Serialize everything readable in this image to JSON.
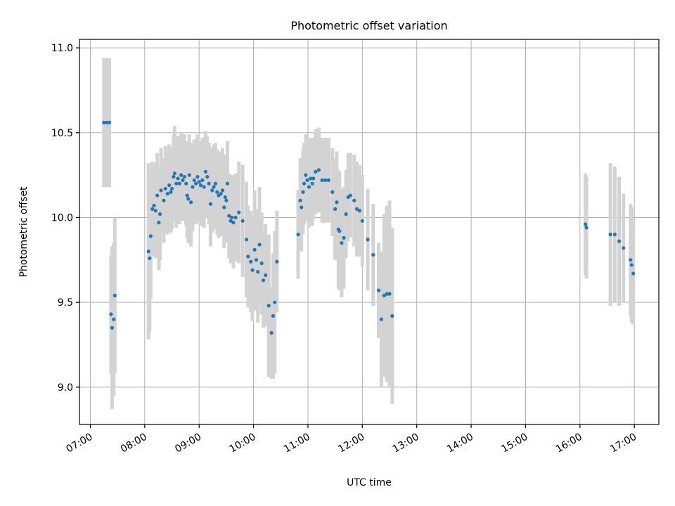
{
  "chart_data": {
    "type": "scatter",
    "title": "Photometric offset variation",
    "xlabel": "UTC time",
    "ylabel": "Photometric offset",
    "x_unit": "hours (UTC)",
    "xlim": [
      6.8,
      17.45
    ],
    "ylim": [
      8.78,
      11.05
    ],
    "grid": true,
    "colors": {
      "point": "#1f77b4",
      "errorbar": "#d3d3d3",
      "grid": "#b0b0b0"
    },
    "x_ticks": [
      {
        "value": 7,
        "label": "07:00"
      },
      {
        "value": 8,
        "label": "08:00"
      },
      {
        "value": 9,
        "label": "09:00"
      },
      {
        "value": 10,
        "label": "10:00"
      },
      {
        "value": 11,
        "label": "11:00"
      },
      {
        "value": 12,
        "label": "12:00"
      },
      {
        "value": 13,
        "label": "13:00"
      },
      {
        "value": 14,
        "label": "14:00"
      },
      {
        "value": 15,
        "label": "15:00"
      },
      {
        "value": 16,
        "label": "16:00"
      },
      {
        "value": 17,
        "label": "17:00"
      }
    ],
    "y_ticks": [
      {
        "value": 9.0,
        "label": "9.0"
      },
      {
        "value": 9.5,
        "label": "9.5"
      },
      {
        "value": 10.0,
        "label": "10.0"
      },
      {
        "value": 10.5,
        "label": "10.5"
      },
      {
        "value": 11.0,
        "label": "11.0"
      }
    ],
    "series": [
      {
        "name": "offset",
        "points": [
          {
            "x": 7.25,
            "y": 10.56,
            "err": 0.38
          },
          {
            "x": 7.3,
            "y": 10.56,
            "err": 0.38
          },
          {
            "x": 7.35,
            "y": 10.56,
            "err": 0.38
          },
          {
            "x": 7.38,
            "y": 9.43,
            "err": 0.35
          },
          {
            "x": 7.4,
            "y": 9.35,
            "err": 0.48
          },
          {
            "x": 7.43,
            "y": 9.4,
            "err": 0.45
          },
          {
            "x": 7.45,
            "y": 9.54,
            "err": 0.46
          },
          {
            "x": 8.07,
            "y": 9.8,
            "err": 0.52
          },
          {
            "x": 8.09,
            "y": 9.76,
            "err": 0.43
          },
          {
            "x": 8.11,
            "y": 9.89,
            "err": 0.37
          },
          {
            "x": 8.14,
            "y": 10.05,
            "err": 0.28
          },
          {
            "x": 8.17,
            "y": 10.07,
            "err": 0.25
          },
          {
            "x": 8.2,
            "y": 10.04,
            "err": 0.28
          },
          {
            "x": 8.23,
            "y": 10.13,
            "err": 0.25
          },
          {
            "x": 8.26,
            "y": 9.97,
            "err": 0.28
          },
          {
            "x": 8.28,
            "y": 10.02,
            "err": 0.27
          },
          {
            "x": 8.3,
            "y": 10.16,
            "err": 0.25
          },
          {
            "x": 8.35,
            "y": 10.1,
            "err": 0.25
          },
          {
            "x": 8.38,
            "y": 10.17,
            "err": 0.25
          },
          {
            "x": 8.42,
            "y": 10.14,
            "err": 0.24
          },
          {
            "x": 8.45,
            "y": 10.19,
            "err": 0.24
          },
          {
            "x": 8.48,
            "y": 10.15,
            "err": 0.24
          },
          {
            "x": 8.5,
            "y": 10.17,
            "err": 0.24
          },
          {
            "x": 8.53,
            "y": 10.24,
            "err": 0.25
          },
          {
            "x": 8.55,
            "y": 10.26,
            "err": 0.28
          },
          {
            "x": 8.58,
            "y": 10.2,
            "err": 0.26
          },
          {
            "x": 8.61,
            "y": 10.23,
            "err": 0.25
          },
          {
            "x": 8.64,
            "y": 10.2,
            "err": 0.24
          },
          {
            "x": 8.67,
            "y": 10.25,
            "err": 0.25
          },
          {
            "x": 8.7,
            "y": 10.22,
            "err": 0.24
          },
          {
            "x": 8.73,
            "y": 10.24,
            "err": 0.25
          },
          {
            "x": 8.76,
            "y": 10.2,
            "err": 0.25
          },
          {
            "x": 8.78,
            "y": 10.13,
            "err": 0.25
          },
          {
            "x": 8.8,
            "y": 10.11,
            "err": 0.26
          },
          {
            "x": 8.82,
            "y": 10.25,
            "err": 0.24
          },
          {
            "x": 8.85,
            "y": 10.09,
            "err": 0.26
          },
          {
            "x": 8.88,
            "y": 10.18,
            "err": 0.26
          },
          {
            "x": 8.91,
            "y": 10.22,
            "err": 0.24
          },
          {
            "x": 8.94,
            "y": 10.2,
            "err": 0.24
          },
          {
            "x": 8.97,
            "y": 10.24,
            "err": 0.25
          },
          {
            "x": 9.0,
            "y": 10.21,
            "err": 0.24
          },
          {
            "x": 9.03,
            "y": 10.19,
            "err": 0.24
          },
          {
            "x": 9.06,
            "y": 10.22,
            "err": 0.25
          },
          {
            "x": 9.09,
            "y": 10.18,
            "err": 0.24
          },
          {
            "x": 9.12,
            "y": 10.27,
            "err": 0.24
          },
          {
            "x": 9.15,
            "y": 10.24,
            "err": 0.24
          },
          {
            "x": 9.18,
            "y": 10.2,
            "err": 0.24
          },
          {
            "x": 9.21,
            "y": 10.08,
            "err": 0.25
          },
          {
            "x": 9.24,
            "y": 10.16,
            "err": 0.25
          },
          {
            "x": 9.27,
            "y": 10.18,
            "err": 0.25
          },
          {
            "x": 9.3,
            "y": 10.2,
            "err": 0.24
          },
          {
            "x": 9.33,
            "y": 10.15,
            "err": 0.25
          },
          {
            "x": 9.36,
            "y": 10.13,
            "err": 0.25
          },
          {
            "x": 9.4,
            "y": 10.14,
            "err": 0.25
          },
          {
            "x": 9.43,
            "y": 10.16,
            "err": 0.25
          },
          {
            "x": 9.46,
            "y": 10.06,
            "err": 0.24
          },
          {
            "x": 9.48,
            "y": 10.12,
            "err": 0.25
          },
          {
            "x": 9.5,
            "y": 10.1,
            "err": 0.25
          },
          {
            "x": 9.52,
            "y": 10.2,
            "err": 0.25
          },
          {
            "x": 9.55,
            "y": 10.01,
            "err": 0.25
          },
          {
            "x": 9.58,
            "y": 9.98,
            "err": 0.25
          },
          {
            "x": 9.6,
            "y": 10.0,
            "err": 0.25
          },
          {
            "x": 9.63,
            "y": 9.97,
            "err": 0.27
          },
          {
            "x": 9.67,
            "y": 10.0,
            "err": 0.26
          },
          {
            "x": 9.73,
            "y": 10.03,
            "err": 0.3
          },
          {
            "x": 9.8,
            "y": 9.98,
            "err": 0.33
          },
          {
            "x": 9.87,
            "y": 9.87,
            "err": 0.34
          },
          {
            "x": 9.9,
            "y": 9.77,
            "err": 0.3
          },
          {
            "x": 9.95,
            "y": 9.74,
            "err": 0.3
          },
          {
            "x": 9.98,
            "y": 9.69,
            "err": 0.3
          },
          {
            "x": 10.02,
            "y": 9.81,
            "err": 0.35
          },
          {
            "x": 10.05,
            "y": 9.75,
            "err": 0.3
          },
          {
            "x": 10.08,
            "y": 9.68,
            "err": 0.3
          },
          {
            "x": 10.11,
            "y": 9.84,
            "err": 0.34
          },
          {
            "x": 10.15,
            "y": 9.73,
            "err": 0.3
          },
          {
            "x": 10.18,
            "y": 9.63,
            "err": 0.28
          },
          {
            "x": 10.22,
            "y": 9.66,
            "err": 0.3
          },
          {
            "x": 10.28,
            "y": 9.48,
            "err": 0.42
          },
          {
            "x": 10.33,
            "y": 9.32,
            "err": 0.27
          },
          {
            "x": 10.36,
            "y": 9.42,
            "err": 0.37
          },
          {
            "x": 10.39,
            "y": 9.5,
            "err": 0.42
          },
          {
            "x": 10.43,
            "y": 9.74,
            "err": 0.3
          },
          {
            "x": 10.82,
            "y": 9.9,
            "err": 0.26
          },
          {
            "x": 10.86,
            "y": 10.1,
            "err": 0.25
          },
          {
            "x": 10.88,
            "y": 10.06,
            "err": 0.26
          },
          {
            "x": 10.91,
            "y": 10.15,
            "err": 0.25
          },
          {
            "x": 10.93,
            "y": 10.2,
            "err": 0.24
          },
          {
            "x": 10.96,
            "y": 10.25,
            "err": 0.24
          },
          {
            "x": 10.99,
            "y": 10.22,
            "err": 0.24
          },
          {
            "x": 11.02,
            "y": 10.18,
            "err": 0.24
          },
          {
            "x": 11.05,
            "y": 10.23,
            "err": 0.24
          },
          {
            "x": 11.08,
            "y": 10.2,
            "err": 0.25
          },
          {
            "x": 11.1,
            "y": 10.23,
            "err": 0.24
          },
          {
            "x": 11.14,
            "y": 10.27,
            "err": 0.25
          },
          {
            "x": 11.2,
            "y": 10.28,
            "err": 0.25
          },
          {
            "x": 11.26,
            "y": 10.22,
            "err": 0.25
          },
          {
            "x": 11.32,
            "y": 10.22,
            "err": 0.25
          },
          {
            "x": 11.38,
            "y": 10.22,
            "err": 0.25
          },
          {
            "x": 11.45,
            "y": 10.15,
            "err": 0.26
          },
          {
            "x": 11.5,
            "y": 10.05,
            "err": 0.3
          },
          {
            "x": 11.53,
            "y": 10.09,
            "err": 0.3
          },
          {
            "x": 11.56,
            "y": 9.93,
            "err": 0.35
          },
          {
            "x": 11.58,
            "y": 9.92,
            "err": 0.35
          },
          {
            "x": 11.62,
            "y": 9.85,
            "err": 0.32
          },
          {
            "x": 11.66,
            "y": 9.88,
            "err": 0.3
          },
          {
            "x": 11.7,
            "y": 10.02,
            "err": 0.26
          },
          {
            "x": 11.74,
            "y": 10.12,
            "err": 0.26
          },
          {
            "x": 11.78,
            "y": 10.13,
            "err": 0.25
          },
          {
            "x": 11.85,
            "y": 10.1,
            "err": 0.27
          },
          {
            "x": 11.9,
            "y": 10.05,
            "err": 0.28
          },
          {
            "x": 11.95,
            "y": 10.04,
            "err": 0.27
          },
          {
            "x": 12.0,
            "y": 9.98,
            "err": 0.27
          },
          {
            "x": 12.1,
            "y": 9.87,
            "err": 0.3
          },
          {
            "x": 12.2,
            "y": 9.78,
            "err": 0.3
          },
          {
            "x": 12.3,
            "y": 9.57,
            "err": 0.28
          },
          {
            "x": 12.35,
            "y": 9.4,
            "err": 0.4
          },
          {
            "x": 12.4,
            "y": 9.54,
            "err": 0.48
          },
          {
            "x": 12.45,
            "y": 9.55,
            "err": 0.52
          },
          {
            "x": 12.5,
            "y": 9.55,
            "err": 0.55
          },
          {
            "x": 12.55,
            "y": 9.42,
            "err": 0.52
          },
          {
            "x": 16.1,
            "y": 9.96,
            "err": 0.3
          },
          {
            "x": 16.12,
            "y": 9.94,
            "err": 0.3
          },
          {
            "x": 16.56,
            "y": 9.9,
            "err": 0.42
          },
          {
            "x": 16.64,
            "y": 9.9,
            "err": 0.4
          },
          {
            "x": 16.72,
            "y": 9.86,
            "err": 0.38
          },
          {
            "x": 16.8,
            "y": 9.82,
            "err": 0.32
          },
          {
            "x": 16.93,
            "y": 9.75,
            "err": 0.33
          },
          {
            "x": 16.95,
            "y": 9.72,
            "err": 0.34
          },
          {
            "x": 16.98,
            "y": 9.67,
            "err": 0.3
          }
        ]
      }
    ]
  }
}
